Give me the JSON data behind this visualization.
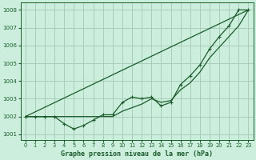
{
  "bg_color": "#cceedd",
  "grid_color": "#aaccbb",
  "line_color": "#1a5c2a",
  "title": "Graphe pression niveau de la mer (hPa)",
  "xlim": [
    -0.5,
    23.5
  ],
  "ylim": [
    1000.7,
    1008.4
  ],
  "yticks": [
    1001,
    1002,
    1003,
    1004,
    1005,
    1006,
    1007,
    1008
  ],
  "xticks": [
    0,
    1,
    2,
    3,
    4,
    5,
    6,
    7,
    8,
    9,
    10,
    11,
    12,
    13,
    14,
    15,
    16,
    17,
    18,
    19,
    20,
    21,
    22,
    23
  ],
  "y_main": [
    1002.0,
    1002.0,
    1002.0,
    1002.0,
    1001.6,
    1001.3,
    1001.5,
    1001.8,
    1002.1,
    1002.1,
    1002.8,
    1003.1,
    1003.0,
    1003.1,
    1002.6,
    1002.8,
    1003.8,
    1004.3,
    1004.9,
    1005.8,
    1006.5,
    1007.1,
    1008.0,
    1008.0
  ],
  "y_line1_x": [
    0,
    23
  ],
  "y_line1_y": [
    1002.0,
    1008.0
  ],
  "y_line2": [
    1002.0,
    1002.0,
    1002.0,
    1002.0,
    1002.0,
    1002.0,
    1002.0,
    1002.0,
    1002.0,
    1002.0,
    1002.3,
    1002.5,
    1002.7,
    1003.0,
    1002.8,
    1002.9,
    1003.5,
    1003.9,
    1004.5,
    1005.3,
    1005.9,
    1006.5,
    1007.1,
    1008.0
  ]
}
